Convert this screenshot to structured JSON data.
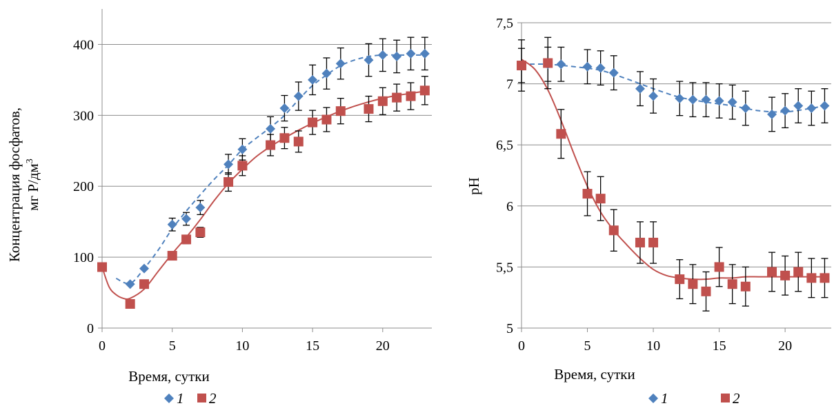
{
  "colors": {
    "series1": "#4f81bd",
    "series2": "#c0504d",
    "grid": "#8c8c8c",
    "errorbar": "#000000"
  },
  "chart_data": [
    {
      "type": "scatter",
      "title": "",
      "xlabel": "Время, сутки",
      "ylabel_line1": "Концентрация фосфатов,",
      "ylabel_line2": "мг P/дм",
      "ylabel_sup": "3",
      "xlim": [
        0,
        23.5
      ],
      "ylim": [
        0,
        450
      ],
      "xticks": [
        0,
        5,
        10,
        15,
        20
      ],
      "xtick_labels": [
        "0",
        "5",
        "10",
        "15",
        "20"
      ],
      "yticks": [
        0,
        100,
        200,
        300,
        400
      ],
      "ytick_labels": [
        "0",
        "100",
        "200",
        "300",
        "400"
      ],
      "grid": true,
      "legend_position": "bottom-center",
      "series": [
        {
          "name": "1",
          "marker": "diamond",
          "color": "#4f81bd",
          "trend": "dashed",
          "x": [
            2,
            3,
            5,
            6,
            7,
            9,
            10,
            12,
            13,
            14,
            15,
            16,
            17,
            19,
            20,
            21,
            22,
            23
          ],
          "y": [
            62,
            84,
            146,
            154,
            170,
            231,
            252,
            281,
            310,
            327,
            350,
            359,
            373,
            378,
            385,
            383,
            387,
            387
          ],
          "err": [
            0,
            0,
            9,
            9,
            10,
            14,
            15,
            17,
            18,
            20,
            21,
            22,
            22,
            23,
            23,
            23,
            23,
            23
          ]
        },
        {
          "name": "2",
          "marker": "square",
          "color": "#c0504d",
          "trend": "solid",
          "x": [
            0,
            2,
            3,
            5,
            6,
            7,
            9,
            10,
            12,
            13,
            14,
            15,
            16,
            17,
            19,
            20,
            21,
            22,
            23
          ],
          "y": [
            86,
            34,
            62,
            102,
            125,
            135,
            206,
            229,
            258,
            268,
            263,
            290,
            294,
            306,
            309,
            320,
            325,
            327,
            335
          ],
          "err": [
            0,
            0,
            0,
            0,
            6,
            7,
            13,
            14,
            15,
            15,
            15,
            17,
            17,
            18,
            18,
            19,
            19,
            19,
            20
          ]
        }
      ],
      "trendlines": [
        {
          "x": [
            1,
            2,
            3,
            4,
            5,
            6,
            7,
            8,
            9,
            10,
            11,
            12,
            13,
            14,
            15,
            16,
            17,
            18,
            19,
            20,
            21,
            22,
            23
          ],
          "y": [
            70,
            63,
            84,
            110,
            140,
            165,
            188,
            210,
            230,
            252,
            268,
            283,
            300,
            322,
            342,
            357,
            370,
            378,
            383,
            385,
            385,
            385,
            385
          ]
        },
        {
          "x": [
            0,
            0.5,
            1,
            1.5,
            2,
            3,
            4,
            5,
            6,
            7,
            8,
            9,
            10,
            11,
            12,
            13,
            14,
            15,
            16,
            17,
            18,
            19,
            20,
            21,
            22,
            23
          ],
          "y": [
            86,
            58,
            47,
            42,
            42,
            55,
            80,
            105,
            128,
            153,
            180,
            204,
            224,
            242,
            256,
            268,
            279,
            289,
            298,
            306,
            313,
            319,
            324,
            328,
            331,
            334
          ]
        }
      ]
    },
    {
      "type": "scatter",
      "title": "",
      "xlabel": "Время, сутки",
      "ylabel": "pH",
      "xlim": [
        0,
        23.5
      ],
      "ylim": [
        5,
        7.5
      ],
      "xticks": [
        0,
        5,
        10,
        15,
        20
      ],
      "xtick_labels": [
        "0",
        "5",
        "10",
        "15",
        "20"
      ],
      "yticks": [
        5,
        5.5,
        6,
        6.5,
        7,
        7.5
      ],
      "ytick_labels": [
        "5",
        "5,5",
        "6",
        "6,5",
        "7",
        "7,5"
      ],
      "grid": true,
      "legend_position": "bottom-center",
      "series": [
        {
          "name": "1",
          "marker": "diamond",
          "color": "#4f81bd",
          "trend": "dashed",
          "x": [
            0,
            2,
            3,
            5,
            6,
            7,
            9,
            10,
            12,
            13,
            14,
            15,
            16,
            17,
            19,
            20,
            21,
            22,
            23
          ],
          "y": [
            7.15,
            7.16,
            7.16,
            7.14,
            7.13,
            7.09,
            6.96,
            6.9,
            6.88,
            6.87,
            6.87,
            6.86,
            6.85,
            6.8,
            6.75,
            6.78,
            6.82,
            6.8,
            6.82
          ],
          "err": [
            0.14,
            0.14,
            0.14,
            0.14,
            0.14,
            0.14,
            0.14,
            0.14,
            0.14,
            0.14,
            0.14,
            0.14,
            0.14,
            0.14,
            0.14,
            0.14,
            0.14,
            0.14,
            0.14
          ]
        },
        {
          "name": "2",
          "marker": "square",
          "color": "#c0504d",
          "trend": "solid",
          "x": [
            0,
            2,
            3,
            5,
            6,
            7,
            9,
            10,
            12,
            13,
            14,
            15,
            16,
            17,
            19,
            20,
            21,
            22,
            23
          ],
          "y": [
            7.15,
            7.17,
            6.59,
            6.1,
            6.06,
            5.8,
            5.7,
            5.7,
            5.4,
            5.36,
            5.3,
            5.5,
            5.36,
            5.34,
            5.46,
            5.43,
            5.46,
            5.41,
            5.41
          ],
          "err": [
            0.21,
            0.21,
            0.2,
            0.18,
            0.18,
            0.17,
            0.17,
            0.17,
            0.16,
            0.16,
            0.16,
            0.16,
            0.16,
            0.16,
            0.16,
            0.16,
            0.16,
            0.16,
            0.16
          ]
        }
      ],
      "trendlines": [
        {
          "x": [
            0,
            2,
            4,
            6,
            8,
            10,
            12,
            14,
            16,
            18,
            20,
            22,
            23
          ],
          "y": [
            7.16,
            7.16,
            7.14,
            7.11,
            7.04,
            6.96,
            6.89,
            6.85,
            6.82,
            6.78,
            6.77,
            6.8,
            6.82
          ]
        },
        {
          "x": [
            0,
            1,
            2,
            3,
            4,
            5,
            6,
            7,
            8,
            9,
            10,
            11,
            12,
            13,
            14,
            15,
            16,
            17,
            18,
            19,
            20,
            21,
            22,
            23
          ],
          "y": [
            7.2,
            7.12,
            6.95,
            6.7,
            6.42,
            6.16,
            5.95,
            5.8,
            5.68,
            5.57,
            5.48,
            5.43,
            5.41,
            5.4,
            5.4,
            5.41,
            5.41,
            5.42,
            5.42,
            5.42,
            5.42,
            5.42,
            5.42,
            5.42
          ]
        }
      ]
    }
  ]
}
